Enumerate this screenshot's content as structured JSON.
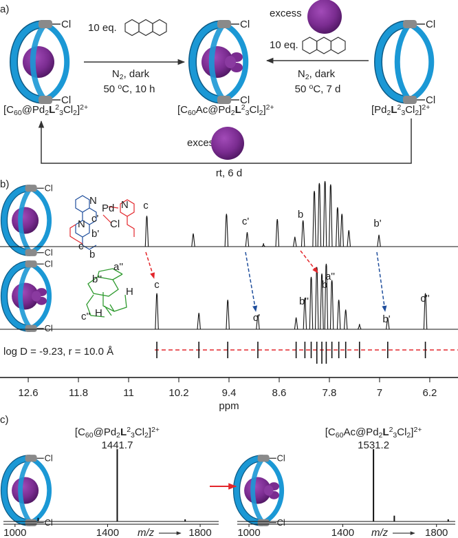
{
  "panel_a": {
    "label": "a)",
    "cage_label": "Cl",
    "left_reaction": {
      "reagent": "10 eq.",
      "condition_1": [
        {
          "t": "N"
        },
        {
          "sub": "2"
        },
        {
          "t": ", dark"
        }
      ],
      "condition_2": [
        {
          "t": "50 "
        },
        {
          "sup": "o"
        },
        {
          "t": "C, 10 h"
        }
      ]
    },
    "right_reaction": {
      "excess": "excess",
      "reagent": "10 eq.",
      "condition_1": [
        {
          "t": "N"
        },
        {
          "sub": "2"
        },
        {
          "t": ", dark"
        }
      ],
      "condition_2": [
        {
          "t": "50 "
        },
        {
          "sup": "o"
        },
        {
          "t": "C,  7 d"
        }
      ]
    },
    "bottom_reaction": {
      "excess": "excess",
      "condition": "rt, 6 d"
    },
    "compounds": [
      [
        {
          "t": "[C"
        },
        {
          "sub": "60"
        },
        {
          "t": "@Pd"
        },
        {
          "sub": "2"
        },
        {
          "b": "L"
        },
        {
          "sup": "2"
        },
        {
          "sub": "3"
        },
        {
          "t": "Cl"
        },
        {
          "sub": "2"
        },
        {
          "t": "]"
        },
        {
          "sup": "2+"
        }
      ],
      [
        {
          "t": "[C"
        },
        {
          "sub": "60"
        },
        {
          "t": "Ac@Pd"
        },
        {
          "sub": "2"
        },
        {
          "b": "L"
        },
        {
          "sup": "2"
        },
        {
          "sub": "3"
        },
        {
          "t": "Cl"
        },
        {
          "sub": "2"
        },
        {
          "t": "]"
        },
        {
          "sup": "2+"
        }
      ],
      [
        {
          "t": "[Pd"
        },
        {
          "sub": "2"
        },
        {
          "b": "L"
        },
        {
          "sup": "2"
        },
        {
          "sub": "3"
        },
        {
          "t": "Cl"
        },
        {
          "sub": "2"
        },
        {
          "t": "]"
        },
        {
          "sup": "2+"
        }
      ]
    ]
  },
  "panel_b": {
    "label": "b)",
    "structure_1": [
      "N",
      "N",
      "Pd",
      "c'",
      "Cl",
      "b'",
      "N",
      "c",
      "b"
    ],
    "structure_2": [
      "a''",
      "b''",
      "H",
      "c''",
      "H"
    ],
    "xlim": [
      13.05,
      5.75
    ],
    "ticks": [
      12.6,
      11.8,
      11.0,
      10.2,
      9.4,
      8.6,
      7.8,
      7.0,
      6.2
    ],
    "x_label": "ppm",
    "dosy": "log D = -9.23, r = 10.0 Å",
    "spectra": [
      {
        "peaks": [
          {
            "ppm": 10.71,
            "height": 47
          },
          {
            "ppm": 9.97,
            "height": 20
          },
          {
            "ppm": 9.44,
            "height": 50
          },
          {
            "ppm": 9.11,
            "height": 22
          },
          {
            "ppm": 8.85,
            "height": 5
          },
          {
            "ppm": 8.63,
            "height": 42
          },
          {
            "ppm": 8.35,
            "height": 15
          },
          {
            "ppm": 8.22,
            "height": 40
          },
          {
            "ppm": 8.04,
            "height": 85
          },
          {
            "ppm": 7.96,
            "height": 97
          },
          {
            "ppm": 7.87,
            "height": 100
          },
          {
            "ppm": 7.78,
            "height": 95
          },
          {
            "ppm": 7.67,
            "height": 60
          },
          {
            "ppm": 7.6,
            "height": 50
          },
          {
            "ppm": 7.49,
            "height": 25
          },
          {
            "ppm": 7.01,
            "height": 18
          }
        ],
        "labels": [
          {
            "text": "c",
            "color": "#e3262b"
          },
          {
            "text": "c'",
            "color": "#1f4e9c"
          },
          {
            "text": "b",
            "color": "#e3262b"
          },
          {
            "text": "b'",
            "color": "#1f4e9c"
          }
        ]
      },
      {
        "peaks": [
          {
            "ppm": 10.55,
            "height": 55
          },
          {
            "ppm": 9.88,
            "height": 25
          },
          {
            "ppm": 9.42,
            "height": 45
          },
          {
            "ppm": 8.94,
            "height": 22
          },
          {
            "ppm": 8.33,
            "height": 18
          },
          {
            "ppm": 8.19,
            "height": 48
          },
          {
            "ppm": 8.09,
            "height": 80
          },
          {
            "ppm": 8.0,
            "height": 95
          },
          {
            "ppm": 7.92,
            "height": 85
          },
          {
            "ppm": 7.85,
            "height": 100
          },
          {
            "ppm": 7.76,
            "height": 75
          },
          {
            "ppm": 7.65,
            "height": 45
          },
          {
            "ppm": 7.54,
            "height": 30
          },
          {
            "ppm": 7.32,
            "height": 8
          },
          {
            "ppm": 6.87,
            "height": 18
          },
          {
            "ppm": 6.27,
            "height": 55
          }
        ],
        "labels": [
          {
            "text": "c",
            "color": "#e3262b"
          },
          {
            "text": "c'",
            "color": "#1f4e9c"
          },
          {
            "text": "b''",
            "color": "#2e9a2e"
          },
          {
            "text": "a''",
            "color": "#2e9a2e"
          },
          {
            "text": "b",
            "color": "#e3262b"
          },
          {
            "text": "b'",
            "color": "#1f4e9c"
          },
          {
            "text": "c''",
            "color": "#2e9a2e"
          }
        ]
      }
    ]
  },
  "panel_c": {
    "label": "c)",
    "spectra": [
      {
        "formula": [
          {
            "t": "[C"
          },
          {
            "sub": "60"
          },
          {
            "t": "@Pd"
          },
          {
            "sub": "2"
          },
          {
            "b": "L"
          },
          {
            "sup": "2"
          },
          {
            "sub": "3"
          },
          {
            "t": "Cl"
          },
          {
            "sub": "2"
          },
          {
            "t": "]"
          },
          {
            "sup": "2+"
          }
        ],
        "peak_label": "1441.7",
        "xlim": [
          950,
          1880
        ],
        "ticks": [
          1000,
          1400,
          1800
        ],
        "x_label": "m/z",
        "peaks": [
          {
            "mz": 1100,
            "height": 5
          },
          {
            "mz": 1441.7,
            "height": 100
          },
          {
            "mz": 1735,
            "height": 3
          }
        ]
      },
      {
        "formula": [
          {
            "t": "[C"
          },
          {
            "sub": "60"
          },
          {
            "t": "Ac@Pd"
          },
          {
            "sub": "2"
          },
          {
            "b": "L"
          },
          {
            "sup": "2"
          },
          {
            "sub": "3"
          },
          {
            "t": "Cl"
          },
          {
            "sub": "2"
          },
          {
            "t": "]"
          },
          {
            "sup": "2+"
          }
        ],
        "peak_label": "1531.2",
        "xlim": [
          950,
          1880
        ],
        "ticks": [
          1000,
          1400,
          1800
        ],
        "x_label": "m/z",
        "peaks": [
          {
            "mz": 1531.2,
            "height": 100
          },
          {
            "mz": 1620,
            "height": 8
          },
          {
            "mz": 1850,
            "height": 3
          }
        ]
      }
    ]
  }
}
